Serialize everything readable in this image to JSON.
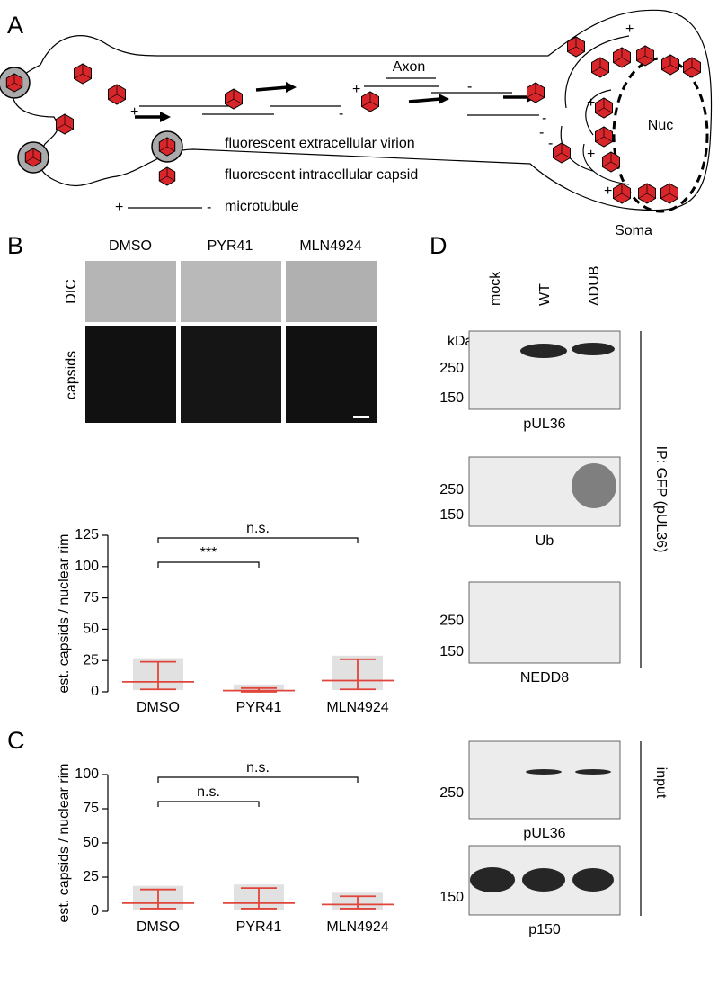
{
  "panel_a": {
    "label": "A",
    "axon": "Axon",
    "nucleus": "Nuc",
    "soma": "Soma",
    "plus": "+",
    "minus": "-",
    "legend": [
      "fluorescent extracellular virion",
      "fluorescent intracellular capsid",
      "microtubule"
    ]
  },
  "panel_b": {
    "label": "B",
    "columns": [
      "DMSO",
      "PYR41",
      "MLN4924"
    ],
    "rows": [
      "DIC",
      "capsids"
    ],
    "chart": {
      "type": "dot",
      "y_label": "est. capsids / nuclear rim",
      "categories": [
        "DMSO",
        "PYR41",
        "MLN4924"
      ],
      "median": [
        8,
        1,
        9
      ],
      "q1": [
        2,
        0,
        2
      ],
      "q3": [
        24,
        3,
        26
      ],
      "ylim": [
        0,
        125
      ],
      "yticks": [
        0,
        25,
        50,
        75,
        100,
        125
      ],
      "comparisons": [
        "***",
        "n.s."
      ]
    }
  },
  "panel_c": {
    "label": "C",
    "chart": {
      "type": "dot",
      "y_label": "est. capsids / nuclear rim",
      "categories": [
        "DMSO",
        "PYR41",
        "MLN4924"
      ],
      "median": [
        6,
        6,
        5
      ],
      "q1": [
        2,
        2,
        2
      ],
      "q3": [
        16,
        17,
        11
      ],
      "ylim": [
        0,
        100
      ],
      "yticks": [
        0,
        25,
        50,
        75,
        100
      ],
      "comparisons": [
        "n.s.",
        "n.s."
      ]
    }
  },
  "panel_d": {
    "label": "D",
    "lanes": [
      "mock",
      "WT",
      "ΔDUB"
    ],
    "kda": "kDa",
    "ip": "IP: GFP (pUL36)",
    "input": "input",
    "blots": [
      {
        "name": "pUL36",
        "markers": [
          "250",
          "150"
        ]
      },
      {
        "name": "Ub",
        "markers": [
          "250",
          "150"
        ]
      },
      {
        "name": "NEDD8",
        "markers": [
          "250",
          "150"
        ]
      },
      {
        "name": "pUL36",
        "markers": [
          "250"
        ]
      },
      {
        "name": "p150",
        "markers": [
          "150"
        ]
      }
    ]
  }
}
